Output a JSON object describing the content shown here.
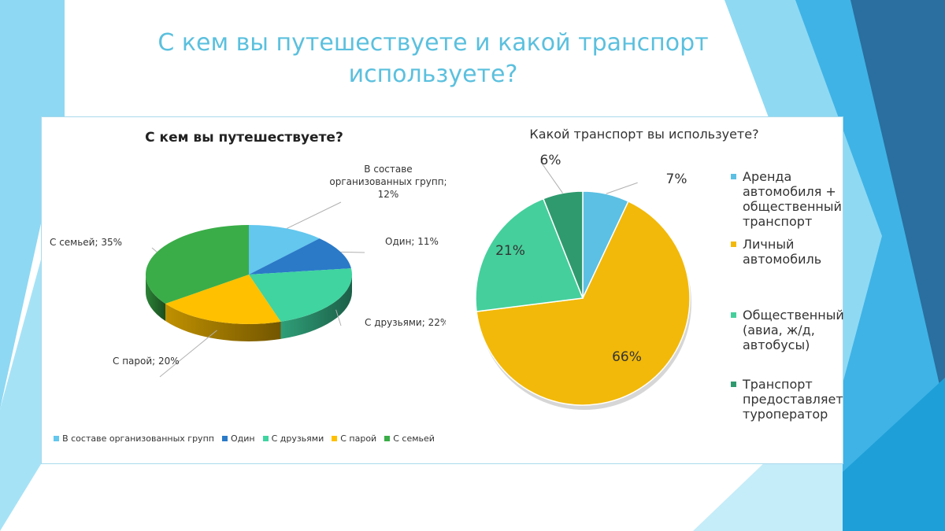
{
  "slide": {
    "title": "С кем вы путешествуете и какой транспорт используете?"
  },
  "theme": {
    "accent": "#5bc0de",
    "deco_light": "#7fd3f0",
    "deco_mid": "#2ea3dd",
    "deco_dark": "#1f5f8f"
  },
  "chart_data": [
    {
      "type": "pie",
      "title": "С кем вы путешествуете?",
      "categories": [
        "В составе организованных групп",
        "Один",
        "С друзьями",
        "С парой",
        "С семьей"
      ],
      "values": [
        12,
        11,
        22,
        20,
        35
      ],
      "data_labels": [
        "В составе организованных групп; 12%",
        "Один; 11%",
        "С друзьями; 22%",
        "С парой; 20%",
        "С семьей; 35%"
      ],
      "colors": [
        "#63c7ee",
        "#2a7ac8",
        "#3fd4a0",
        "#ffc000",
        "#3aad48"
      ],
      "legend_position": "bottom",
      "style": "3d"
    },
    {
      "type": "pie",
      "title": "Какой транспорт вы используете?",
      "categories": [
        "Аренда автомобиля + общественный транспорт",
        "Личный автомобиль",
        "Общественный (авиа, ж/д, автобусы)",
        "Транспорт предоставляет туроператор"
      ],
      "values": [
        7,
        66,
        21,
        6
      ],
      "data_labels": [
        "7%",
        "66%",
        "21%",
        "6%"
      ],
      "colors": [
        "#5bc0e3",
        "#f2b90a",
        "#45cf9c",
        "#2f9a6e"
      ],
      "legend_position": "right"
    }
  ]
}
